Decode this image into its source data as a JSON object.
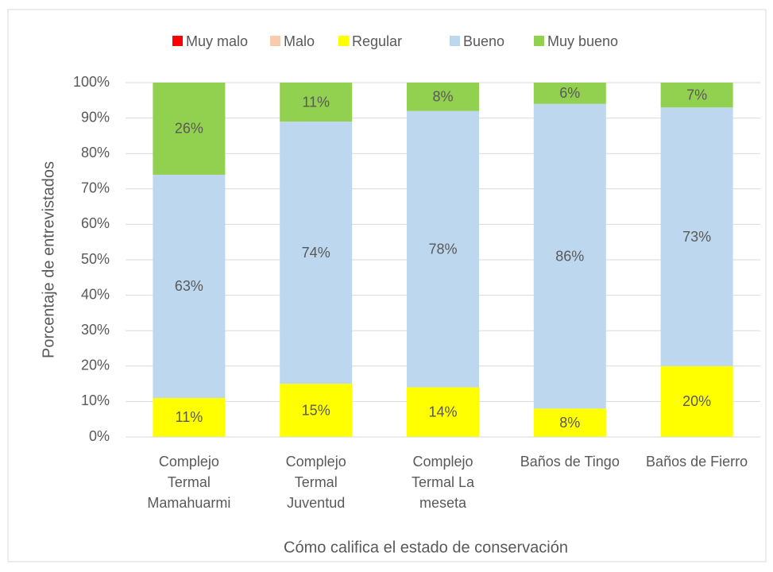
{
  "chart_data": {
    "type": "stacked_bar",
    "categories": [
      "Complejo\nTermal\nMamahuarmi",
      "Complejo\nTermal\nJuventud",
      "Complejo\nTermal  La\nmeseta",
      "Baños de Tingo",
      "Baños de Fierro"
    ],
    "series": [
      {
        "name": "Muy malo",
        "color": "#ff0000",
        "values": [
          0,
          0,
          0,
          0,
          0
        ]
      },
      {
        "name": "Malo",
        "color": "#f8cbad",
        "values": [
          0,
          0,
          0,
          0,
          0
        ]
      },
      {
        "name": "Regular",
        "color": "#ffff00",
        "values": [
          11,
          15,
          14,
          8,
          20
        ],
        "value_labels": [
          "11%",
          "15%",
          "14%",
          "8%",
          "20%"
        ]
      },
      {
        "name": "Bueno",
        "color": "#bdd7ee",
        "values": [
          63,
          74,
          78,
          86,
          73
        ],
        "value_labels": [
          "63%",
          "74%",
          "78%",
          "86%",
          "73%"
        ]
      },
      {
        "name": "Muy bueno",
        "color": "#92d050",
        "values": [
          26,
          11,
          8,
          6,
          7
        ],
        "value_labels": [
          "26%",
          "11%",
          "8%",
          "6%",
          "7%"
        ]
      }
    ],
    "ylabel": "Porcentaje de entrevistados",
    "xlabel": "Cómo califica el estado de conservación",
    "ylim": [
      0,
      100
    ],
    "yticks": [
      {
        "value": 0,
        "label": "0%"
      },
      {
        "value": 10,
        "label": "10%"
      },
      {
        "value": 20,
        "label": "20%"
      },
      {
        "value": 30,
        "label": "30%"
      },
      {
        "value": 40,
        "label": "40%"
      },
      {
        "value": 50,
        "label": "50%"
      },
      {
        "value": 60,
        "label": "60%"
      },
      {
        "value": 70,
        "label": "70%"
      },
      {
        "value": 80,
        "label": "80%"
      },
      {
        "value": 90,
        "label": "90%"
      },
      {
        "value": 100,
        "label": "100%"
      }
    ],
    "grid": true,
    "legend": "top"
  }
}
